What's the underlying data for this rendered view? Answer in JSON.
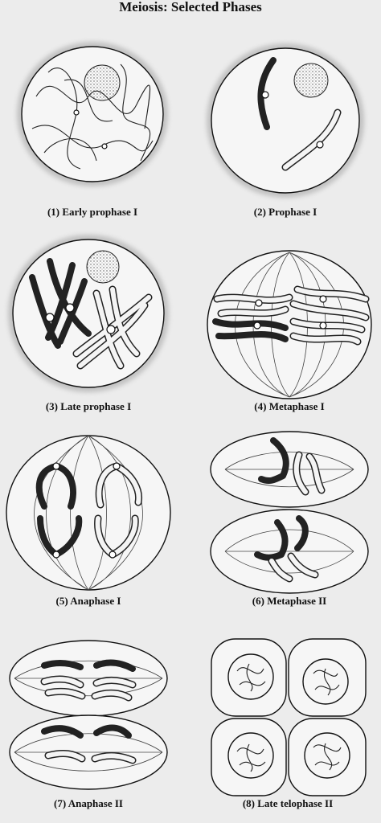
{
  "title": "Meiosis: Selected Phases",
  "panels": [
    {
      "label": "(1) Early prophase I"
    },
    {
      "label": "(2) Prophase I"
    },
    {
      "label": "(3) Late prophase I"
    },
    {
      "label": "(4) Metaphase I"
    },
    {
      "label": "(5) Anaphase I"
    },
    {
      "label": "(6) Metaphase II"
    },
    {
      "label": "(7) Anaphase II"
    },
    {
      "label": "(8) Late telophase II"
    }
  ]
}
